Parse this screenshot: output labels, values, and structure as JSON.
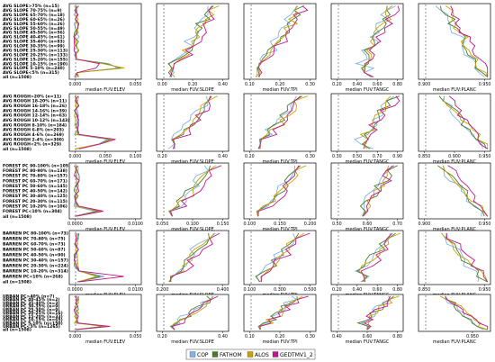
{
  "chart_data": {
    "type": "line",
    "legend": {
      "placement": "bottom-right",
      "entries": [
        {
          "name": "COP",
          "color": "#7fb2e5"
        },
        {
          "name": "FATHOM",
          "color": "#4d7a2a"
        },
        {
          "name": "ALOS",
          "color": "#c9a200"
        },
        {
          "name": "GEDTMV1_2",
          "color": "#c0168a"
        }
      ]
    },
    "columns": [
      {
        "xlabel": "median FUV:ELEV"
      },
      {
        "xlabel": "median FUV:SLOPE"
      },
      {
        "xlabel": "median FUV:TPI"
      },
      {
        "xlabel": "median FUV:TANGC"
      },
      {
        "xlabel": "median FUV:PLANC"
      }
    ],
    "rows": [
      {
        "labels": [
          "AVG SLOPE>75% (n=15)",
          "AVG SLOPE 70-75% (n=9)",
          "AVG SLOPE 65-70% (n=18)",
          "AVG SLOPE 60-65% (n=26)",
          "AVG SLOPE 55-60% (n=26)",
          "AVG SLOPE 50-55% (n=49)",
          "AVG SLOPE 45-50% (n=56)",
          "AVG SLOPE 40-45% (n=61)",
          "AVG SLOPE 35-40% (n=83)",
          "AVG SLOPE 30-35% (n=99)",
          "AVG SLOPE 25-30% (n=113)",
          "AVG SLOPE 20-25% (n=133)",
          "AVG SLOPE 15-20% (n=155)",
          "AVG SLOPE 10-15% (n=190)",
          "AVG SLOPE 5-10% (n=240)",
          "AVG SLOPE<5% (n=315)",
          "all (n=1508)"
        ],
        "ticks": [
          [
            "0.000",
            "0.050"
          ],
          [
            "0.00",
            "0.20",
            "0.40"
          ],
          [
            "0.10",
            "0.20",
            "0.30"
          ],
          [
            "0.20",
            "0.40",
            "0.60",
            "0.80"
          ],
          [
            "0.900",
            "0.950"
          ]
        ]
      },
      {
        "labels": [
          "AVG ROUGH>20% (n=11)",
          "AVG ROUGH 18-20% (n=11)",
          "AVG ROUGH 16-18% (n=26)",
          "AVG ROUGH 14-16% (n=39)",
          "AVG ROUGH 12-14% (n=63)",
          "AVG ROUGH 10-12% (n=143)",
          "AVG ROUGH 8-10% (n=184)",
          "AVG ROUGH 6-8% (n=203)",
          "AVG ROUGH 4-6% (n=269)",
          "AVG ROUGH 2-4% (n=300)",
          "AVG ROUGH<2% (n=329)",
          "all (n=1508)"
        ],
        "ticks": [
          [
            "0.000",
            "0.050",
            "0.100"
          ],
          [
            "0.20",
            "0.40"
          ],
          [
            "0.20",
            "0.30"
          ],
          [
            "0.30",
            "0.50",
            "0.70",
            "0.90"
          ],
          [
            "0.850",
            "0.900",
            "0.950"
          ]
        ]
      },
      {
        "labels": [
          "FOREST PC 90-100% (n=105)",
          "FOREST PC 80-90% (n=138)",
          "FOREST PC 70-80% (n=157)",
          "FOREST PC 60-70% (n=171)",
          "FOREST PC 50-60% (n=145)",
          "FOREST PC 40-50% (n=142)",
          "FOREST PC 30-40% (n=125)",
          "FOREST PC 20-30% (n=115)",
          "FOREST PC 10-20% (n=106)",
          "FOREST PC<10% (n=304)",
          "all (n=1508)"
        ],
        "ticks": [
          [
            "0.0000",
            "0.0100"
          ],
          [
            "0.050",
            "0.100",
            "0.150"
          ],
          [
            "0.100",
            "0.150",
            "0.200"
          ],
          [
            "0.50",
            "0.60",
            "0.70"
          ],
          [
            "0.900",
            "0.950"
          ]
        ]
      },
      {
        "labels": [
          "BARREN PC 80-100% (n=73)",
          "BARREN PC 70-80% (n=75)",
          "BARREN PC 60-70% (n=73)",
          "BARREN PC 50-60% (n=87)",
          "BARREN PC 40-50% (n=90)",
          "BARREN PC 30-40% (n=157)",
          "BARREN PC 20-30% (n=224)",
          "BARREN PC 10-20% (n=314)",
          "BARREN PC<10% (n=268)",
          "all (n=1508)"
        ],
        "ticks": [
          [
            "0.0000",
            "0.0100"
          ],
          [
            "0.200",
            "0.400"
          ],
          [
            "0.100",
            "0.300",
            "0.500"
          ],
          [
            "0.20",
            "0.40",
            "0.60",
            "0.80"
          ],
          [
            "0.850",
            "0.950"
          ]
        ]
      },
      {
        "labels": [
          "URBAN PC>40% (n=7)",
          "URBAN PC 40-45% (n=2)",
          "URBAN PC 35-40% (n=3)",
          "URBAN PC 30-35% (n=9)",
          "URBAN PC 25-30% (n=9)",
          "URBAN PC 20-25% (n=16)",
          "URBAN PC 15-20% (n=33)",
          "URBAN PC 10-15% (n=65)",
          "URBAN PC 5-10% (n=150)",
          "URBAN PC<5% (n=1265)",
          "all (n=1508)"
        ],
        "ticks": [
          [
            "0.000",
            "0.050"
          ],
          [
            "0.20",
            "0.40"
          ],
          [
            "0.10",
            "0.20",
            "0.30"
          ],
          [
            "0.40",
            "0.60",
            "0.80"
          ],
          [
            "0.950"
          ]
        ]
      }
    ]
  }
}
